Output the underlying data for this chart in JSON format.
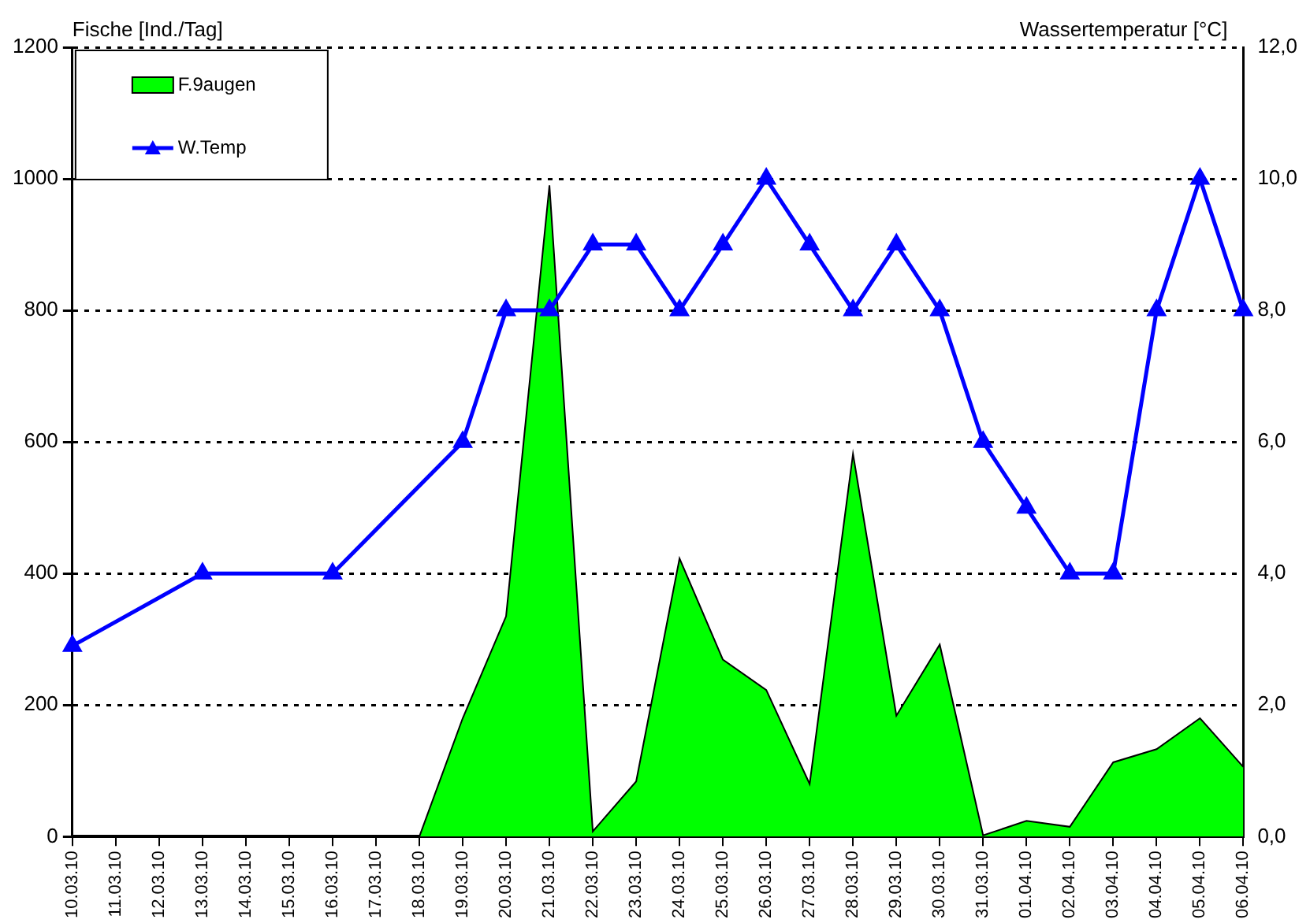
{
  "chart_data": {
    "type": "area",
    "categories": [
      "10.03.10",
      "11.03.10",
      "12.03.10",
      "13.03.10",
      "14.03.10",
      "15.03.10",
      "16.03.10",
      "17.03.10",
      "18.03.10",
      "19.03.10",
      "20.03.10",
      "21.03.10",
      "22.03.10",
      "23.03.10",
      "24.03.10",
      "25.03.10",
      "26.03.10",
      "27.03.10",
      "28.03.10",
      "29.03.10",
      "30.03.10",
      "31.03.10",
      "01.04.10",
      "02.04.10",
      "03.04.10",
      "04.04.10",
      "05.04.10",
      "06.04.10"
    ],
    "series": [
      {
        "name": "F.9augen",
        "color": "#00ff00",
        "values": [
          0,
          0,
          0,
          0,
          0,
          0,
          0,
          0,
          0,
          180,
          335,
          990,
          8,
          84,
          423,
          269,
          223,
          80,
          582,
          184,
          292,
          2,
          24,
          15,
          113,
          133,
          180,
          106
        ]
      },
      {
        "name": "W.Temp",
        "type": "line",
        "axis": "y2",
        "color": "#0000ff",
        "marker": "triangle",
        "values": [
          2.9,
          null,
          null,
          4,
          null,
          null,
          4,
          null,
          null,
          6,
          8,
          8,
          9,
          9,
          8,
          9,
          10,
          9,
          8,
          9,
          8,
          6,
          5,
          4,
          4,
          8,
          10,
          8
        ]
      }
    ],
    "ylabel": "Fische [Ind./Tag]",
    "y2label": "Wassertemperatur [°C]",
    "ylim": [
      0,
      1200
    ],
    "yticks": [
      0,
      200,
      400,
      600,
      800,
      1000,
      1200
    ],
    "y2lim": [
      0,
      12
    ],
    "y2ticks": [
      {
        "value": 0,
        "label": "0,0"
      },
      {
        "value": 2,
        "label": "2,0"
      },
      {
        "value": 4,
        "label": "4,0"
      },
      {
        "value": 6,
        "label": "6,0"
      },
      {
        "value": 8,
        "label": "8,0"
      },
      {
        "value": 10,
        "label": "10,0"
      },
      {
        "value": 12,
        "label": "12,0"
      }
    ],
    "grid": "y",
    "legend": "top left"
  }
}
